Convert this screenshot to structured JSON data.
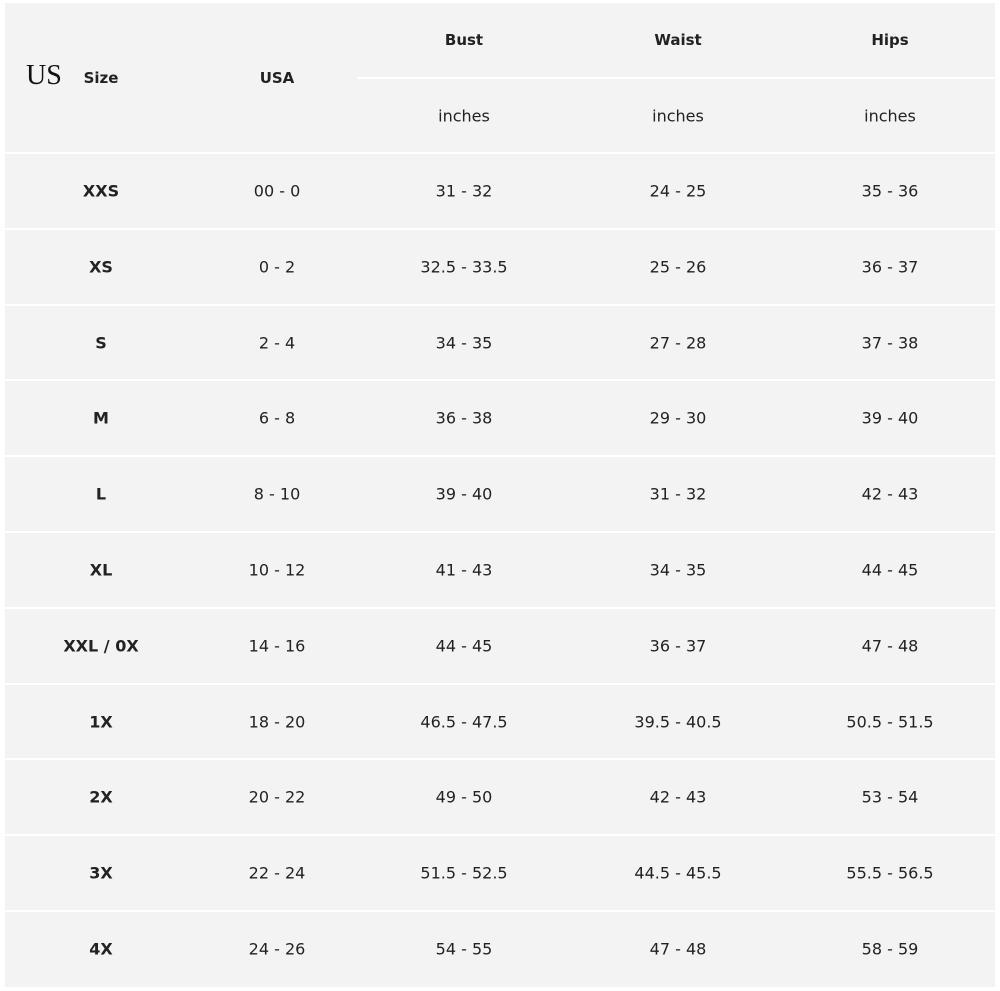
{
  "header": {
    "prefix": "US",
    "size": "Size",
    "usa": "USA",
    "measures": [
      "Bust",
      "Waist",
      "Hips"
    ],
    "units": [
      "inches",
      "inches",
      "inches"
    ]
  },
  "table": {
    "rows": [
      [
        "XXS",
        "00 - 0",
        "31 - 32",
        "24 - 25",
        "35 - 36"
      ],
      [
        "XS",
        "0 - 2",
        "32.5 - 33.5",
        "25 - 26",
        "36 - 37"
      ],
      [
        "S",
        "2 - 4",
        "34 - 35",
        "27 - 28",
        "37 - 38"
      ],
      [
        "M",
        "6 - 8",
        "36 - 38",
        "29 - 30",
        "39 - 40"
      ],
      [
        "L",
        "8 - 10",
        "39 - 40",
        "31 - 32",
        "42 - 43"
      ],
      [
        "XL",
        "10 - 12",
        "41 - 43",
        "34 - 35",
        "44 - 45"
      ],
      [
        "XXL / 0X",
        "14 - 16",
        "44 - 45",
        "36 - 37",
        "47 - 48"
      ],
      [
        "1X",
        "18 - 20",
        "46.5 - 47.5",
        "39.5 - 40.5",
        "50.5 - 51.5"
      ],
      [
        "2X",
        "20 - 22",
        "49 - 50",
        "42 - 43",
        "53 - 54"
      ],
      [
        "3X",
        "22 - 24",
        "51.5 - 52.5",
        "44.5 - 45.5",
        "55.5 - 56.5"
      ],
      [
        "4X",
        "24 - 26",
        "54 - 55",
        "47 - 48",
        "58 - 59"
      ]
    ]
  }
}
